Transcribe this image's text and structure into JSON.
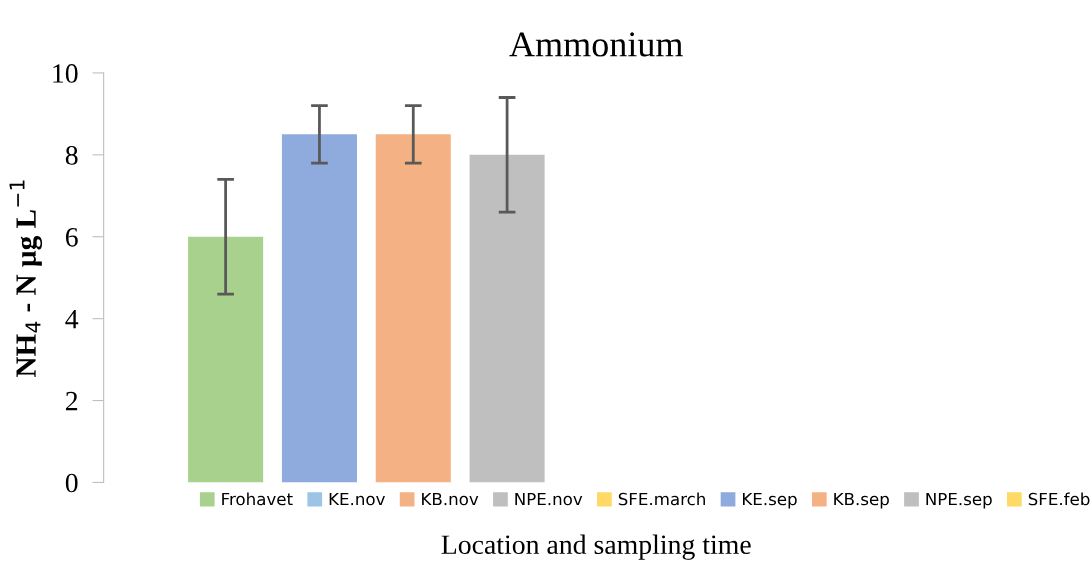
{
  "chart_data": {
    "type": "bar",
    "title": "Ammonium",
    "xlabel": "Location and sampling time",
    "ylabel": "NH$_{4}$ - N µg L$^{−1}$",
    "categories": [
      null,
      null,
      null,
      null
    ],
    "stacked": true,
    "series": [
      {
        "name": "Frohavet",
        "color": "#a9d18e",
        "values": [
          6,
          null,
          null,
          null
        ],
        "errors": [
          1.4,
          null,
          null,
          null
        ]
      },
      {
        "name": "KE.nov",
        "color": "#9dc3e6",
        "values": [
          null,
          null,
          null,
          null
        ]
      },
      {
        "name": "KB.nov",
        "color": "#f4b183",
        "values": [
          null,
          null,
          null,
          null
        ]
      },
      {
        "name": "NPE.nov",
        "color": "#bfbfbf",
        "values": [
          null,
          null,
          null,
          null
        ]
      },
      {
        "name": "SFE.march",
        "color": "#ffd966",
        "values": [
          null,
          null,
          null,
          null
        ]
      },
      {
        "name": "KE.sep",
        "color": "#8faadc",
        "values": [
          null,
          8.5,
          null,
          null
        ],
        "errors": [
          null,
          0.7,
          null,
          null
        ]
      },
      {
        "name": "KB.sep",
        "color": "#f4b183",
        "values": [
          null,
          null,
          8.5,
          null
        ],
        "errors": [
          null,
          null,
          0.7,
          null
        ]
      },
      {
        "name": "NPE.sep",
        "color": "#bfbfbf",
        "values": [
          null,
          null,
          null,
          8
        ],
        "errors": [
          null,
          null,
          null,
          1.4
        ]
      },
      {
        "name": "SFE.feb",
        "color": "#ffd966",
        "values": [
          null,
          null,
          null,
          null
        ]
      }
    ],
    "ylim": [
      0,
      10
    ],
    "yticks": [
      0,
      2,
      4,
      6,
      8,
      10
    ],
    "grid": false,
    "legend": "bottom"
  }
}
